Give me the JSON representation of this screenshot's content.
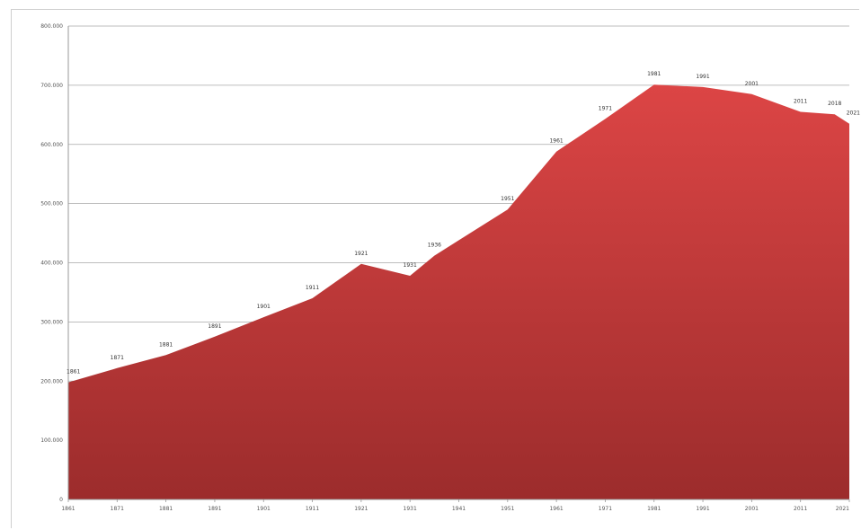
{
  "chart_data": {
    "type": "area",
    "title": "",
    "xlabel": "",
    "ylabel": "",
    "x": [
      1861,
      1871,
      1881,
      1891,
      1901,
      1911,
      1921,
      1931,
      1936,
      1951,
      1961,
      1971,
      1981,
      1991,
      2001,
      2011,
      2018,
      2021
    ],
    "values": [
      198000,
      222000,
      244000,
      275000,
      308000,
      340000,
      398000,
      378000,
      412000,
      490000,
      588000,
      643000,
      701000,
      697000,
      685000,
      655000,
      651000,
      635000
    ],
    "point_labels": [
      "1861",
      "1871",
      "1881",
      "1891",
      "1901",
      "1911",
      "1921",
      "1931",
      "1936",
      "1951",
      "1961",
      "1971",
      "1981",
      "1991",
      "2001",
      "2011",
      "2018",
      "2021"
    ],
    "x_tick_labels": [
      "1861",
      "1871",
      "1881",
      "1891",
      "1901",
      "1911",
      "1921",
      "1931",
      "1941",
      "1951",
      "1961",
      "1971",
      "1981",
      "1991",
      "2001",
      "2011",
      "2021"
    ],
    "y_tick_labels": [
      "0",
      "100.000",
      "200.000",
      "300.000",
      "400.000",
      "500.000",
      "600.000",
      "700.000",
      "800.000"
    ],
    "ylim": [
      0,
      800000
    ],
    "xlim": [
      1861,
      2021
    ],
    "grid": true,
    "legend": "none",
    "fill_color_top": "#dc4545",
    "fill_color_bottom": "#9c2c2c"
  }
}
